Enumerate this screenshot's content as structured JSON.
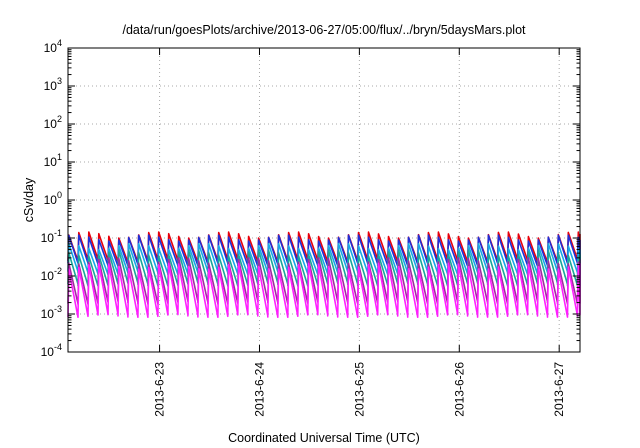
{
  "chart_data": {
    "type": "line",
    "title": "/data/run/goesPlots/archive/2013-06-27/05:00/flux/../bryn/5daysMars.plot",
    "xlabel": "Coordinated Universal Time (UTC)",
    "ylabel": "cSv/day",
    "y_scale": "log",
    "ylim": [
      0.0001,
      10000
    ],
    "y_ticks": [
      {
        "base": "10",
        "exp": "-4",
        "value": 0.0001
      },
      {
        "base": "10",
        "exp": "-3",
        "value": 0.001
      },
      {
        "base": "10",
        "exp": "-2",
        "value": 0.01
      },
      {
        "base": "10",
        "exp": "-1",
        "value": 0.1
      },
      {
        "base": "10",
        "exp": "0",
        "value": 1
      },
      {
        "base": "10",
        "exp": "1",
        "value": 10
      },
      {
        "base": "10",
        "exp": "2",
        "value": 100
      },
      {
        "base": "10",
        "exp": "3",
        "value": 1000
      },
      {
        "base": "10",
        "exp": "4",
        "value": 10000
      }
    ],
    "xlim": [
      "2013-06-22 02:00",
      "2013-06-27 05:00"
    ],
    "x_ticks": [
      "2013-6-23",
      "2013-6-24",
      "2013-6-25",
      "2013-6-26",
      "2013-6-27"
    ],
    "grid": true,
    "sawtooth_period_hours": 2.4,
    "series": [
      {
        "color": "#e8000b",
        "peak": 0.12,
        "trough": 0.025
      },
      {
        "color": "#1f2fd6",
        "peak": 0.1,
        "trough": 0.02
      },
      {
        "color": "#17a8e6",
        "peak": 0.06,
        "trough": 0.012
      },
      {
        "color": "#19a89a",
        "peak": 0.04,
        "trough": 0.006
      },
      {
        "color": "#a02ca0",
        "peak": 0.025,
        "trough": 0.002
      },
      {
        "color": "#ff1fff",
        "peak": 0.018,
        "trough": 0.0009
      }
    ]
  }
}
